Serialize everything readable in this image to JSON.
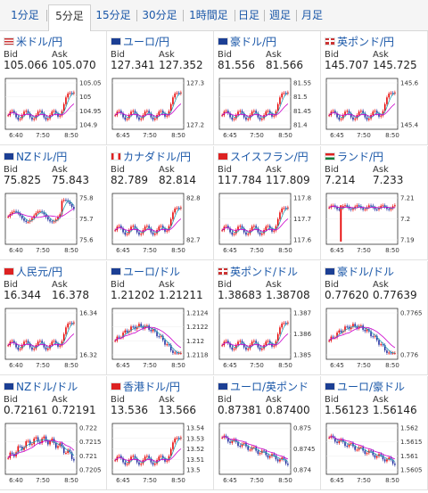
{
  "tabs": [
    "1分足",
    "5分足",
    "15分足",
    "30分足",
    "1時間足",
    "日足",
    "週足",
    "月足"
  ],
  "active_tab": 1,
  "labels": {
    "bid": "Bid",
    "ask": "Ask"
  },
  "colors": {
    "up": "#e60000",
    "down": "#1e2b9e",
    "ma_short": "#2aa0b4",
    "ma_long": "#cc00cc",
    "link": "#1a57a8"
  },
  "cards": [
    {
      "pair": "米ドル/円",
      "flag": "us-flag-icon",
      "bid": "105.066",
      "ask": "105.070",
      "chart_data": {
        "type": "candlestick",
        "y_ticks": [
          "105.05",
          "105",
          "104.95",
          "104.9"
        ],
        "x_ticks": [
          "6:40",
          "7:50",
          "8:50"
        ],
        "trend": "up"
      }
    },
    {
      "pair": "ユーロ/円",
      "flag": "eu-flag-icon",
      "bid": "127.341",
      "ask": "127.352",
      "chart_data": {
        "type": "candlestick",
        "y_ticks": [
          "127.3",
          "127.2"
        ],
        "x_ticks": [
          "6:45",
          "7:50",
          "8:50"
        ],
        "trend": "up"
      }
    },
    {
      "pair": "豪ドル/円",
      "flag": "au-flag-icon",
      "bid": "81.556",
      "ask": "81.566",
      "chart_data": {
        "type": "candlestick",
        "y_ticks": [
          "81.55",
          "81.5",
          "81.45",
          "81.4"
        ],
        "x_ticks": [
          "6:45",
          "7:50",
          "8:50"
        ],
        "trend": "up"
      }
    },
    {
      "pair": "英ポンド/円",
      "flag": "gb-flag-icon",
      "bid": "145.707",
      "ask": "145.725",
      "chart_data": {
        "type": "candlestick",
        "y_ticks": [
          "145.6",
          "145.4"
        ],
        "x_ticks": [
          "6:45",
          "7:50",
          "8:50"
        ],
        "trend": "up"
      }
    },
    {
      "pair": "NZドル/円",
      "flag": "nz-flag-icon",
      "bid": "75.825",
      "ask": "75.843",
      "chart_data": {
        "type": "candlestick",
        "y_ticks": [
          "75.8",
          "75.7",
          "75.6"
        ],
        "x_ticks": [
          "6:40",
          "7:50",
          "8:50"
        ],
        "trend": "flat"
      }
    },
    {
      "pair": "カナダドル/円",
      "flag": "ca-flag-icon",
      "bid": "82.789",
      "ask": "82.814",
      "chart_data": {
        "type": "candlestick",
        "y_ticks": [
          "82.8",
          "82.7"
        ],
        "x_ticks": [
          "6:45",
          "7:50",
          "8:50"
        ],
        "trend": "up"
      }
    },
    {
      "pair": "スイスフラン/円",
      "flag": "ch-flag-icon",
      "bid": "117.784",
      "ask": "117.809",
      "chart_data": {
        "type": "candlestick",
        "y_ticks": [
          "117.8",
          "117.7",
          "117.6"
        ],
        "x_ticks": [
          "6:45",
          "7:50",
          "8:50"
        ],
        "trend": "up"
      }
    },
    {
      "pair": "ランド/円",
      "flag": "za-flag-icon",
      "bid": "7.214",
      "ask": "7.233",
      "chart_data": {
        "type": "candlestick",
        "y_ticks": [
          "7.21",
          "7.2",
          "7.19"
        ],
        "x_ticks": [
          "6:45",
          "7:50",
          "8:50"
        ],
        "trend": "spike"
      }
    },
    {
      "pair": "人民元/円",
      "flag": "cn-flag-icon",
      "bid": "16.344",
      "ask": "16.378",
      "chart_data": {
        "type": "candlestick",
        "y_ticks": [
          "16.34",
          "16.32"
        ],
        "x_ticks": [
          "6:40",
          "7:50",
          "8:50"
        ],
        "trend": "up"
      }
    },
    {
      "pair": "ユーロ/ドル",
      "flag": "eu-flag-icon",
      "bid": "1.21202",
      "ask": "1.21211",
      "chart_data": {
        "type": "candlestick",
        "y_ticks": [
          "1.2124",
          "1.2122",
          "1.212",
          "1.2118"
        ],
        "x_ticks": [
          "6:45",
          "7:50",
          "8:50"
        ],
        "trend": "humpdown"
      }
    },
    {
      "pair": "英ポンド/ドル",
      "flag": "gb-flag-icon",
      "bid": "1.38683",
      "ask": "1.38708",
      "chart_data": {
        "type": "candlestick",
        "y_ticks": [
          "1.387",
          "1.386",
          "1.385"
        ],
        "x_ticks": [
          "6:45",
          "7:50",
          "8:50"
        ],
        "trend": "up"
      }
    },
    {
      "pair": "豪ドル/ドル",
      "flag": "au-flag-icon",
      "bid": "0.77620",
      "ask": "0.77639",
      "chart_data": {
        "type": "candlestick",
        "y_ticks": [
          "0.7765",
          "0.776"
        ],
        "x_ticks": [
          "6:45",
          "7:50",
          "8:50"
        ],
        "trend": "humpdown"
      }
    },
    {
      "pair": "NZドル/ドル",
      "flag": "nz-flag-icon",
      "bid": "0.72161",
      "ask": "0.72191",
      "chart_data": {
        "type": "candlestick",
        "y_ticks": [
          "0.722",
          "0.7215",
          "0.721",
          "0.7205"
        ],
        "x_ticks": [
          "6:40",
          "7:50",
          "8:50"
        ],
        "trend": "updown"
      }
    },
    {
      "pair": "香港ドル/円",
      "flag": "hk-flag-icon",
      "bid": "13.536",
      "ask": "13.566",
      "chart_data": {
        "type": "candlestick",
        "y_ticks": [
          "13.54",
          "13.53",
          "13.52",
          "13.51",
          "13.5"
        ],
        "x_ticks": [
          "6:45",
          "7:50",
          "8:50"
        ],
        "trend": "up"
      }
    },
    {
      "pair": "ユーロ/英ポンド",
      "flag": "eu-flag-icon",
      "bid": "0.87381",
      "ask": "0.87400",
      "chart_data": {
        "type": "candlestick",
        "y_ticks": [
          "0.875",
          "0.8745",
          "0.874"
        ],
        "x_ticks": [
          "6:45",
          "7:50",
          "8:50"
        ],
        "trend": "down"
      }
    },
    {
      "pair": "ユーロ/豪ドル",
      "flag": "eu-flag-icon",
      "bid": "1.56123",
      "ask": "1.56146",
      "chart_data": {
        "type": "candlestick",
        "y_ticks": [
          "1.562",
          "1.5615",
          "1.561",
          "1.5605"
        ],
        "x_ticks": [
          "6:45",
          "7:50",
          "8:50"
        ],
        "trend": "down"
      }
    }
  ]
}
